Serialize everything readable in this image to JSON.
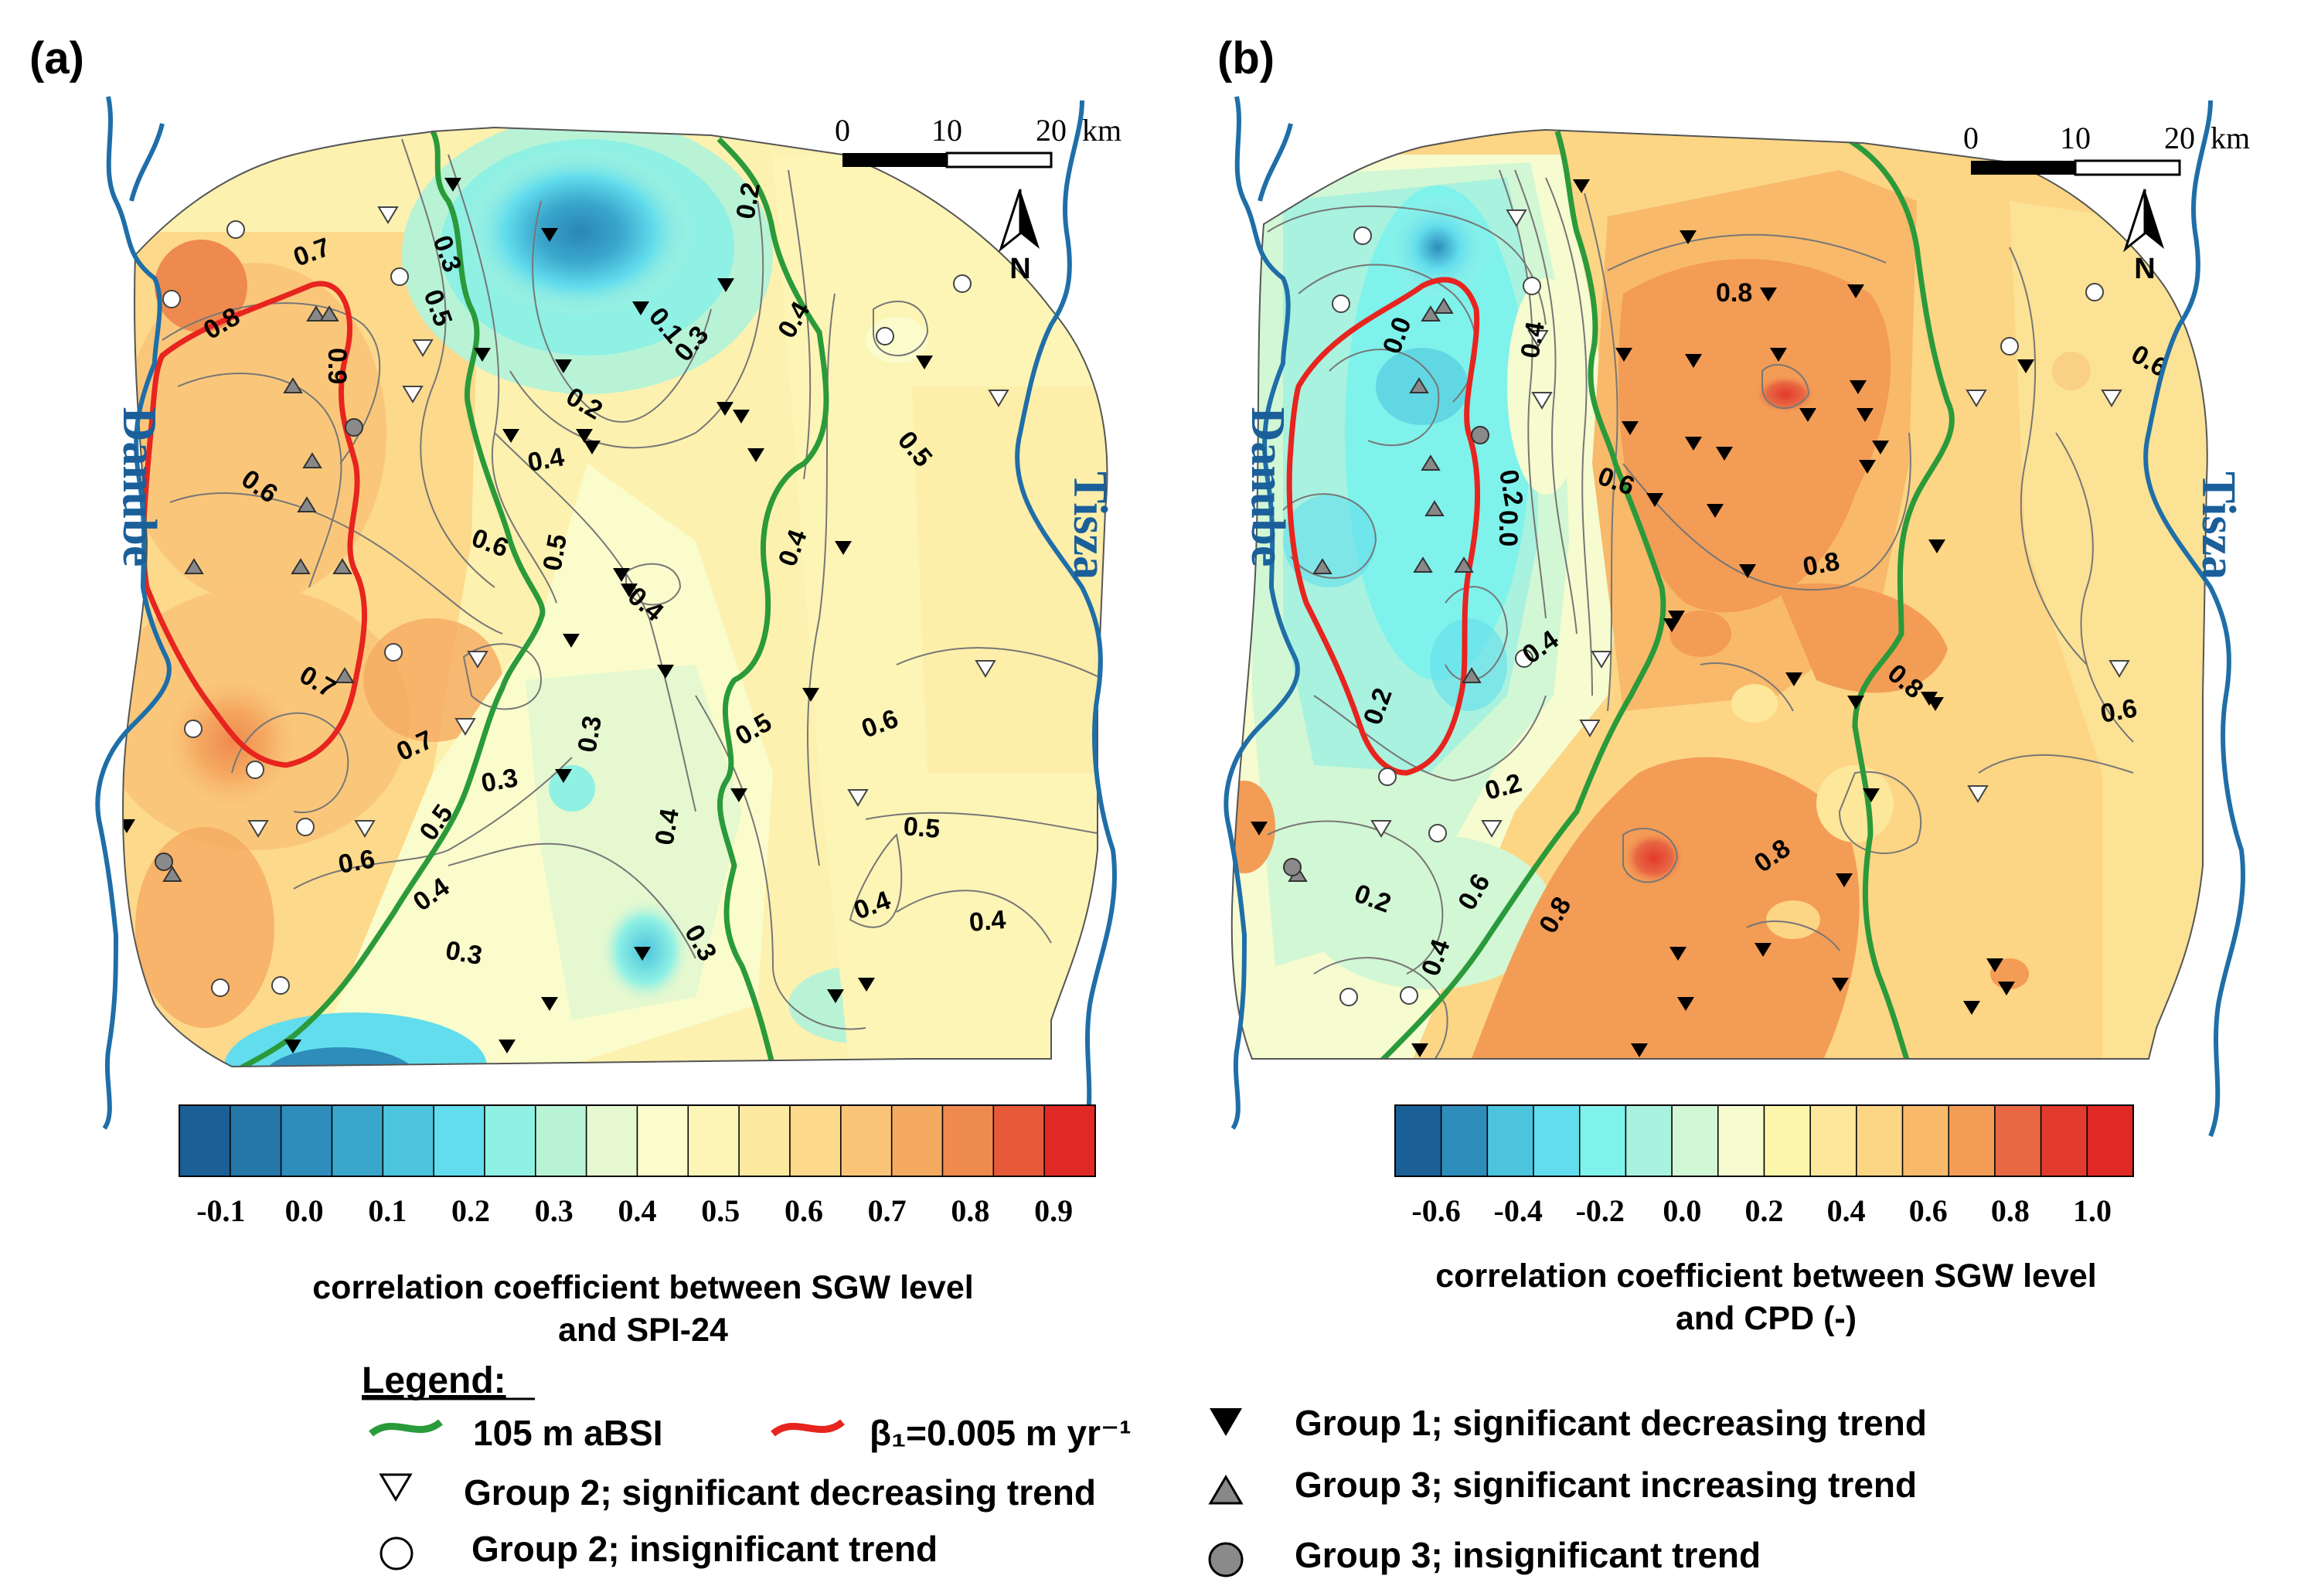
{
  "panels": [
    {
      "label": "(a)",
      "river_left": "Danube",
      "river_right": "Tisza",
      "scale": {
        "t0": "0",
        "t1": "10",
        "t2": "20",
        "unit": "km"
      },
      "north": "N",
      "contour_labels": [
        "0.8",
        "0.7",
        "0.9",
        "0.6",
        "0.6",
        "0.7",
        "0.7",
        "0.6",
        "0.5",
        "0.3",
        "0.5",
        "0.4",
        "0.3",
        "0.3",
        "0.1",
        "0.2",
        "0.3",
        "0.2",
        "0.4",
        "0.4",
        "0.5",
        "0.4",
        "0.3",
        "0.4",
        "0.5",
        "0.6",
        "0.5",
        "0.5",
        "0.4",
        "0.4",
        "0.3",
        "0.4"
      ],
      "colorbar": {
        "ticks": [
          "-0.1",
          "0.0",
          "0.1",
          "0.2",
          "0.3",
          "0.4",
          "0.5",
          "0.6",
          "0.7",
          "0.8",
          "0.9"
        ],
        "title_lines": [
          "correlation coefficient between SGW level",
          "and SPI-24"
        ]
      }
    },
    {
      "label": "(b)",
      "river_left": "Danube",
      "river_right": "Tisza",
      "scale": {
        "t0": "0",
        "t1": "10",
        "t2": "20",
        "unit": "km"
      },
      "north": "N",
      "contour_labels": [
        "0.0",
        "0.4",
        "0.2",
        "0.0",
        "0.6",
        "0.8",
        "0.8",
        "0.6",
        "0.4",
        "0.2",
        "0.2",
        "0.2",
        "0.6",
        "0.4",
        "0.8",
        "0.8",
        "0.8",
        "0.6"
      ],
      "colorbar": {
        "ticks": [
          "-0.6",
          "-0.4",
          "-0.2",
          "0.0",
          "0.2",
          "0.4",
          "0.6",
          "0.8",
          "1.0"
        ],
        "title_lines": [
          "correlation coefficient between SGW level",
          "and CPD (-)"
        ]
      }
    }
  ],
  "colors": {
    "river": "#1f6ea8",
    "isoline_105m": "#2a9a3a",
    "beta_line": "#e8241f",
    "scale_a": [
      "#1a5f96",
      "#2477a8",
      "#2e8dbb",
      "#3aa6cc",
      "#4cc4dd",
      "#62dded",
      "#8ff0e4",
      "#b8f3d6",
      "#e6f8cf",
      "#fafccb",
      "#fdf5b6",
      "#fdeaa0",
      "#fcd98b",
      "#f9c478",
      "#f5aa62",
      "#ef8a4e",
      "#e65a3a",
      "#e02824"
    ],
    "scale_b": [
      "#1a5f96",
      "#2e8dbb",
      "#4cc4dd",
      "#62dded",
      "#7ff2ec",
      "#a8f2df",
      "#d2f7d4",
      "#f6fbd0",
      "#fbf6aa",
      "#fce79a",
      "#fcd585",
      "#f8b96b",
      "#f39c55",
      "#e86843",
      "#e23a2d",
      "#e02824"
    ]
  },
  "legend": {
    "title": "Legend:",
    "items": [
      {
        "symbol": "green-line",
        "text": "105 m aBSI"
      },
      {
        "symbol": "red-line",
        "text": "β₁=0.005 m yr⁻¹"
      },
      {
        "symbol": "black-triangle-down",
        "text": "Group 1; significant decreasing trend"
      },
      {
        "symbol": "white-triangle-down",
        "text": "Group 2; significant decreasing trend"
      },
      {
        "symbol": "grey-triangle-up",
        "text": "Group 3; significant increasing trend"
      },
      {
        "symbol": "white-circle",
        "text": "Group 2; insignificant trend"
      },
      {
        "symbol": "grey-circle",
        "text": "Group 3; insignificant trend"
      }
    ]
  }
}
